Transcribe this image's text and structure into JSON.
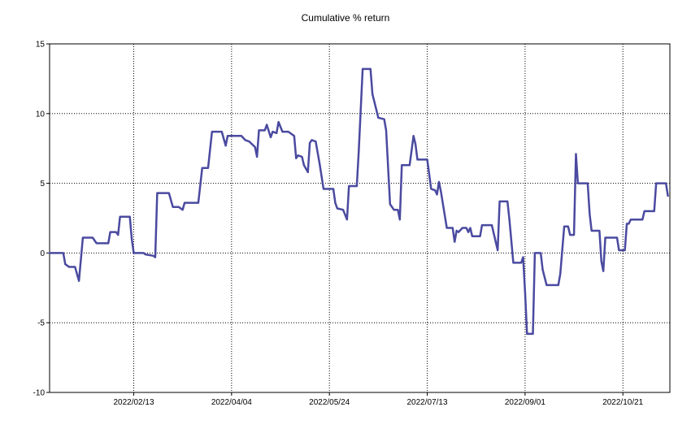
{
  "chart_data": {
    "type": "line",
    "title": "Cumulative % return",
    "xlabel": "",
    "ylabel": "",
    "x_ticks": [
      "2022/02/13",
      "2022/04/04",
      "2022/05/24",
      "2022/07/13",
      "2022/09/01",
      "2022/10/21"
    ],
    "y_ticks": [
      15,
      10,
      5,
      0,
      -5,
      -10
    ],
    "y_tick_labels": [
      "15",
      "10",
      "5",
      "0",
      "-5",
      "-10"
    ],
    "xlim": [
      "2022/01/01",
      "2022/11/14"
    ],
    "ylim": [
      -10,
      15
    ],
    "grid": true,
    "legend": "none",
    "series": [
      {
        "color": "#4a4aa0",
        "points": [
          [
            "2022/01/01",
            0.0
          ],
          [
            "2022/01/08",
            0.0
          ],
          [
            "2022/01/09",
            -0.8
          ],
          [
            "2022/01/11",
            -1.0
          ],
          [
            "2022/01/14",
            -1.0
          ],
          [
            "2022/01/16",
            -2.0
          ],
          [
            "2022/01/18",
            1.1
          ],
          [
            "2022/01/23",
            1.1
          ],
          [
            "2022/01/25",
            0.7
          ],
          [
            "2022/01/31",
            0.7
          ],
          [
            "2022/02/01",
            1.5
          ],
          [
            "2022/02/04",
            1.5
          ],
          [
            "2022/02/05",
            1.3
          ],
          [
            "2022/02/06",
            2.6
          ],
          [
            "2022/02/11",
            2.6
          ],
          [
            "2022/02/12",
            1.0
          ],
          [
            "2022/02/13",
            0.0
          ],
          [
            "2022/02/18",
            0.0
          ],
          [
            "2022/02/19",
            -0.1
          ],
          [
            "2022/02/23",
            -0.2
          ],
          [
            "2022/02/24",
            -0.3
          ],
          [
            "2022/02/25",
            4.3
          ],
          [
            "2022/03/03",
            4.3
          ],
          [
            "2022/03/05",
            3.3
          ],
          [
            "2022/03/08",
            3.3
          ],
          [
            "2022/03/10",
            3.1
          ],
          [
            "2022/03/11",
            3.6
          ],
          [
            "2022/03/18",
            3.6
          ],
          [
            "2022/03/20",
            6.1
          ],
          [
            "2022/03/23",
            6.1
          ],
          [
            "2022/03/25",
            8.7
          ],
          [
            "2022/03/30",
            8.7
          ],
          [
            "2022/04/01",
            7.7
          ],
          [
            "2022/04/02",
            8.4
          ],
          [
            "2022/04/09",
            8.4
          ],
          [
            "2022/04/11",
            8.1
          ],
          [
            "2022/04/13",
            8.0
          ],
          [
            "2022/04/16",
            7.6
          ],
          [
            "2022/04/17",
            6.9
          ],
          [
            "2022/04/18",
            8.8
          ],
          [
            "2022/04/21",
            8.8
          ],
          [
            "2022/04/22",
            9.2
          ],
          [
            "2022/04/24",
            8.3
          ],
          [
            "2022/04/25",
            8.7
          ],
          [
            "2022/04/27",
            8.6
          ],
          [
            "2022/04/28",
            9.4
          ],
          [
            "2022/04/30",
            8.7
          ],
          [
            "2022/05/03",
            8.7
          ],
          [
            "2022/05/06",
            8.4
          ],
          [
            "2022/05/07",
            6.8
          ],
          [
            "2022/05/08",
            7.0
          ],
          [
            "2022/05/10",
            6.9
          ],
          [
            "2022/05/11",
            6.3
          ],
          [
            "2022/05/13",
            5.8
          ],
          [
            "2022/05/14",
            7.9
          ],
          [
            "2022/05/15",
            8.1
          ],
          [
            "2022/05/17",
            8.0
          ],
          [
            "2022/05/19",
            6.4
          ],
          [
            "2022/05/21",
            4.6
          ],
          [
            "2022/05/26",
            4.6
          ],
          [
            "2022/05/27",
            3.6
          ],
          [
            "2022/05/28",
            3.2
          ],
          [
            "2022/05/31",
            3.1
          ],
          [
            "2022/06/02",
            2.4
          ],
          [
            "2022/06/03",
            4.8
          ],
          [
            "2022/06/07",
            4.8
          ],
          [
            "2022/06/08",
            7.3
          ],
          [
            "2022/06/10",
            13.2
          ],
          [
            "2022/06/14",
            13.2
          ],
          [
            "2022/06/15",
            11.4
          ],
          [
            "2022/06/18",
            9.7
          ],
          [
            "2022/06/21",
            9.6
          ],
          [
            "2022/06/22",
            8.8
          ],
          [
            "2022/06/24",
            3.5
          ],
          [
            "2022/06/26",
            3.1
          ],
          [
            "2022/06/28",
            3.1
          ],
          [
            "2022/06/29",
            2.4
          ],
          [
            "2022/06/30",
            6.3
          ],
          [
            "2022/07/04",
            6.3
          ],
          [
            "2022/07/06",
            8.4
          ],
          [
            "2022/07/07",
            7.8
          ],
          [
            "2022/07/08",
            6.7
          ],
          [
            "2022/07/13",
            6.7
          ],
          [
            "2022/07/15",
            4.6
          ],
          [
            "2022/07/17",
            4.5
          ],
          [
            "2022/07/18",
            4.2
          ],
          [
            "2022/07/19",
            5.1
          ],
          [
            "2022/07/20",
            4.4
          ],
          [
            "2022/07/23",
            1.8
          ],
          [
            "2022/07/26",
            1.8
          ],
          [
            "2022/07/27",
            0.8
          ],
          [
            "2022/07/28",
            1.6
          ],
          [
            "2022/07/29",
            1.5
          ],
          [
            "2022/07/31",
            1.8
          ],
          [
            "2022/08/02",
            1.8
          ],
          [
            "2022/08/03",
            1.5
          ],
          [
            "2022/08/04",
            1.8
          ],
          [
            "2022/08/05",
            1.2
          ],
          [
            "2022/08/09",
            1.2
          ],
          [
            "2022/08/10",
            2.0
          ],
          [
            "2022/08/15",
            2.0
          ],
          [
            "2022/08/18",
            0.2
          ],
          [
            "2022/08/19",
            3.7
          ],
          [
            "2022/08/23",
            3.7
          ],
          [
            "2022/08/24",
            2.4
          ],
          [
            "2022/08/26",
            -0.7
          ],
          [
            "2022/08/30",
            -0.7
          ],
          [
            "2022/08/31",
            -0.3
          ],
          [
            "2022/09/01",
            -2.8
          ],
          [
            "2022/09/02",
            -5.8
          ],
          [
            "2022/09/05",
            -5.8
          ],
          [
            "2022/09/06",
            0.0
          ],
          [
            "2022/09/09",
            0.0
          ],
          [
            "2022/09/10",
            -1.2
          ],
          [
            "2022/09/12",
            -2.3
          ],
          [
            "2022/09/18",
            -2.3
          ],
          [
            "2022/09/19",
            -1.5
          ],
          [
            "2022/09/21",
            1.9
          ],
          [
            "2022/09/23",
            1.9
          ],
          [
            "2022/09/24",
            1.3
          ],
          [
            "2022/09/26",
            1.3
          ],
          [
            "2022/09/27",
            7.1
          ],
          [
            "2022/09/28",
            5.0
          ],
          [
            "2022/10/03",
            5.0
          ],
          [
            "2022/10/04",
            2.8
          ],
          [
            "2022/10/05",
            1.6
          ],
          [
            "2022/10/09",
            1.6
          ],
          [
            "2022/10/10",
            -0.6
          ],
          [
            "2022/10/11",
            -1.3
          ],
          [
            "2022/10/12",
            1.1
          ],
          [
            "2022/10/18",
            1.1
          ],
          [
            "2022/10/19",
            0.2
          ],
          [
            "2022/10/22",
            0.2
          ],
          [
            "2022/10/23",
            2.1
          ],
          [
            "2022/10/24",
            2.1
          ],
          [
            "2022/10/25",
            2.4
          ],
          [
            "2022/10/31",
            2.4
          ],
          [
            "2022/11/01",
            3.0
          ],
          [
            "2022/11/06",
            3.0
          ],
          [
            "2022/11/07",
            5.0
          ],
          [
            "2022/11/12",
            5.0
          ],
          [
            "2022/11/13",
            4.1
          ]
        ]
      }
    ]
  }
}
